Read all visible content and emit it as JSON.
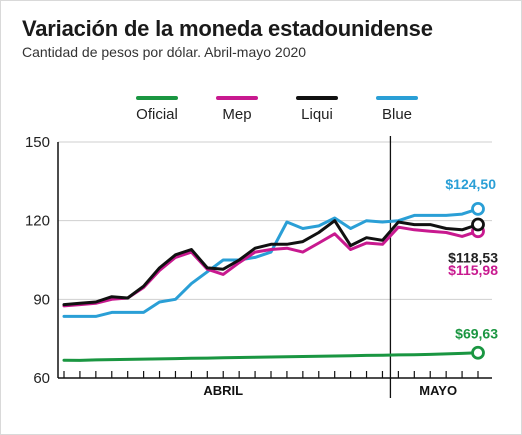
{
  "title": "Variación de la moneda estadounidense",
  "subtitle": "Cantidad de pesos por dólar. Abril-mayo 2020",
  "chart_data": {
    "type": "line",
    "ylim": [
      60,
      150
    ],
    "yticks": [
      "150",
      "120",
      "90",
      "60"
    ],
    "ytick_values": [
      150,
      120,
      90,
      60
    ],
    "grid": true,
    "legend_position": "top",
    "months": [
      {
        "label": "ABRIL",
        "from": 0,
        "to": 20
      },
      {
        "label": "MAYO",
        "from": 21,
        "to": 26
      }
    ],
    "month_divider_after_index": 20,
    "x_count": 27,
    "series": [
      {
        "name": "Oficial",
        "color": "#1a9641",
        "values": [
          66.8,
          66.7,
          66.9,
          67.0,
          67.1,
          67.2,
          67.3,
          67.4,
          67.5,
          67.6,
          67.7,
          67.8,
          67.9,
          68.0,
          68.1,
          68.2,
          68.3,
          68.4,
          68.5,
          68.6,
          68.7,
          68.8,
          68.9,
          69.0,
          69.2,
          69.4,
          69.63
        ],
        "end_label": "$69,63"
      },
      {
        "name": "Mep",
        "color": "#c8198f",
        "values": [
          87.5,
          88.0,
          88.5,
          90.0,
          90.5,
          94.5,
          101.0,
          106.0,
          108.0,
          101.5,
          99.5,
          104.0,
          108.0,
          109.0,
          109.5,
          108.0,
          111.5,
          115.0,
          109.0,
          111.5,
          111.0,
          117.5,
          116.5,
          116.0,
          115.5,
          114.0,
          115.98
        ],
        "end_label": "$115,98"
      },
      {
        "name": "Liqui",
        "color": "#111111",
        "values": [
          88.0,
          88.5,
          89.0,
          91.0,
          90.5,
          95.0,
          102.0,
          107.0,
          109.0,
          102.0,
          101.5,
          105.0,
          109.5,
          111.0,
          111.0,
          112.0,
          115.5,
          120.0,
          110.5,
          113.5,
          112.5,
          119.5,
          118.5,
          118.5,
          117.0,
          116.5,
          118.53
        ],
        "end_label": "$118,53"
      },
      {
        "name": "Blue",
        "color": "#2a9fd6",
        "values": [
          83.5,
          83.5,
          83.5,
          85.0,
          85.0,
          85.0,
          89.0,
          90.0,
          96.0,
          100.5,
          105.0,
          105.0,
          106.0,
          108.0,
          119.5,
          117.0,
          118.0,
          121.0,
          117.0,
          120.0,
          119.5,
          120.0,
          122.0,
          122.0,
          122.0,
          122.5,
          124.5
        ],
        "end_label": "$124,50"
      }
    ]
  }
}
